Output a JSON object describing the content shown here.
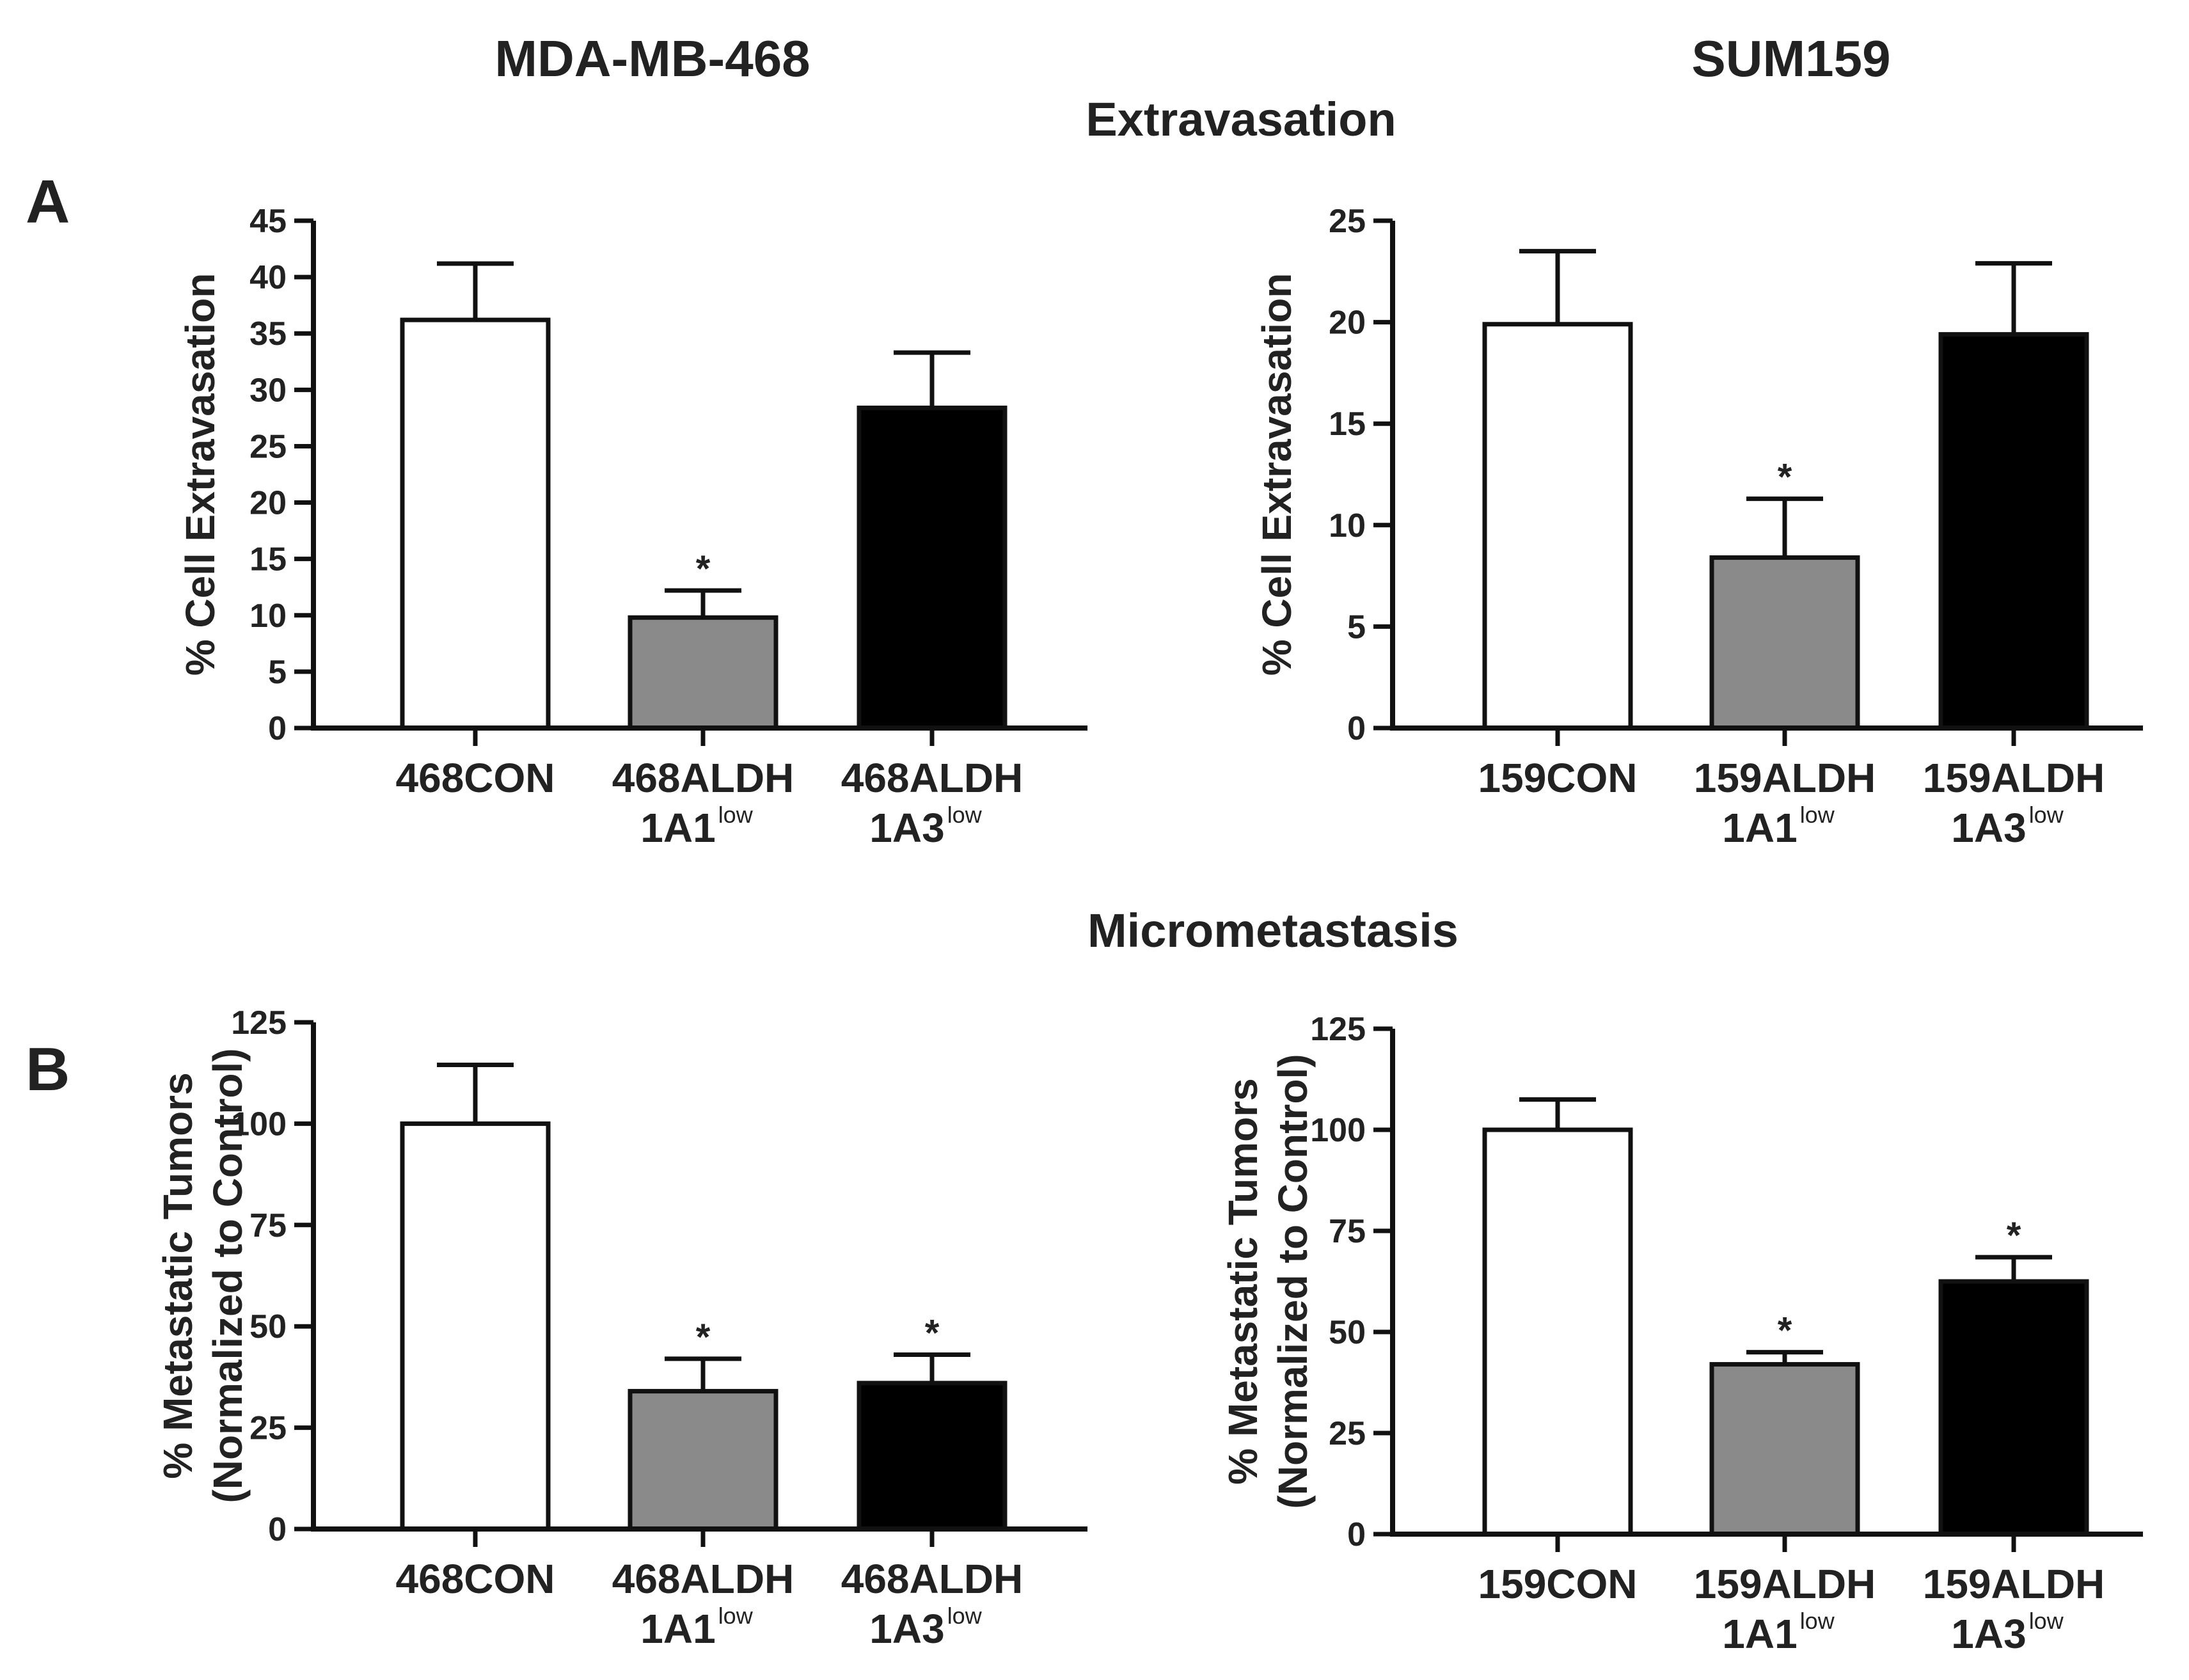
{
  "headers": {
    "left_cell_line": "MDA-MB-468",
    "right_cell_line": "SUM159",
    "section_a_title": "Extravasation",
    "section_b_title": "Micrometastasis",
    "panel_a_letter": "A",
    "panel_b_letter": "B"
  },
  "colors": {
    "control": "#ffffff",
    "aldh1a1": "#8a8a8a",
    "aldh1a3": "#000000",
    "axis": "#111111"
  },
  "significance_marker": "*",
  "chart_data": [
    {
      "id": "a-left",
      "type": "bar",
      "title": "",
      "xlabel": "",
      "ylabel_lines": [
        "% Cell Extravasation"
      ],
      "ylim": [
        0,
        45
      ],
      "yticks": [
        0,
        5,
        10,
        15,
        20,
        25,
        30,
        35,
        40,
        45
      ],
      "categories": [
        {
          "main": "468CON",
          "line2": "",
          "sup": ""
        },
        {
          "main": "468ALDH",
          "line2": "1A1",
          "sup": "low"
        },
        {
          "main": "468ALDH",
          "line2": "1A3",
          "sup": "low"
        }
      ],
      "values": [
        36.2,
        9.8,
        28.4
      ],
      "errors": [
        5.0,
        2.4,
        4.9
      ],
      "fills": [
        "#ffffff",
        "#8a8a8a",
        "#000000"
      ],
      "significant": [
        false,
        true,
        false
      ]
    },
    {
      "id": "a-right",
      "type": "bar",
      "title": "",
      "xlabel": "",
      "ylabel_lines": [
        "% Cell Extravasation"
      ],
      "ylim": [
        0,
        25
      ],
      "yticks": [
        0,
        5,
        10,
        15,
        20,
        25
      ],
      "categories": [
        {
          "main": "159CON",
          "line2": "",
          "sup": ""
        },
        {
          "main": "159ALDH",
          "line2": "1A1",
          "sup": "low"
        },
        {
          "main": "159ALDH",
          "line2": "1A3",
          "sup": "low"
        }
      ],
      "values": [
        19.9,
        8.4,
        19.4
      ],
      "errors": [
        3.6,
        2.9,
        3.5
      ],
      "fills": [
        "#ffffff",
        "#8a8a8a",
        "#000000"
      ],
      "significant": [
        false,
        true,
        false
      ]
    },
    {
      "id": "b-left",
      "type": "bar",
      "title": "",
      "xlabel": "",
      "ylabel_lines": [
        "% Metastatic Tumors",
        "(Normalized to Control)"
      ],
      "ylim": [
        0,
        125
      ],
      "yticks": [
        0,
        25,
        50,
        75,
        100,
        125
      ],
      "categories": [
        {
          "main": "468CON",
          "line2": "",
          "sup": ""
        },
        {
          "main": "468ALDH",
          "line2": "1A1",
          "sup": "low"
        },
        {
          "main": "468ALDH",
          "line2": "1A3",
          "sup": "low"
        }
      ],
      "values": [
        100,
        34,
        36
      ],
      "errors": [
        14.5,
        8.0,
        7.0
      ],
      "fills": [
        "#ffffff",
        "#8a8a8a",
        "#000000"
      ],
      "significant": [
        false,
        true,
        true
      ]
    },
    {
      "id": "b-right",
      "type": "bar",
      "title": "",
      "xlabel": "",
      "ylabel_lines": [
        "% Metastatic Tumors",
        "(Normalized to Control)"
      ],
      "ylim": [
        0,
        125
      ],
      "yticks": [
        0,
        25,
        50,
        75,
        100,
        125
      ],
      "categories": [
        {
          "main": "159CON",
          "line2": "",
          "sup": ""
        },
        {
          "main": "159ALDH",
          "line2": "1A1",
          "sup": "low"
        },
        {
          "main": "159ALDH",
          "line2": "1A3",
          "sup": "low"
        }
      ],
      "values": [
        100,
        42,
        62.5
      ],
      "errors": [
        7.5,
        3.0,
        6.0
      ],
      "fills": [
        "#ffffff",
        "#8a8a8a",
        "#000000"
      ],
      "significant": [
        false,
        true,
        true
      ]
    }
  ]
}
